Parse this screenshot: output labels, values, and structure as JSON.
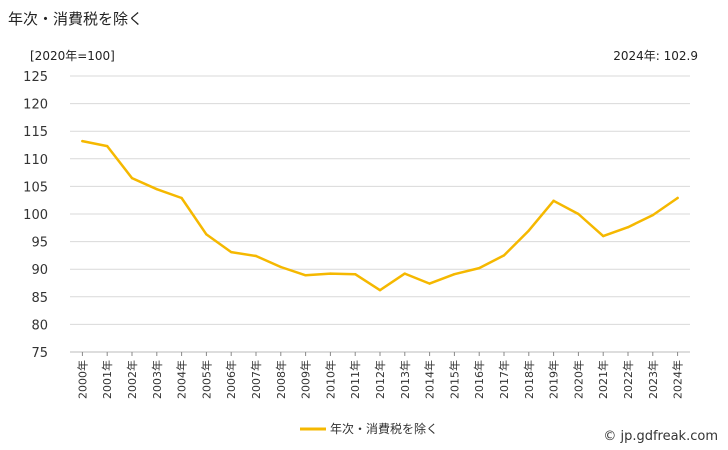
{
  "page": {
    "title": "年次・消費税を除く",
    "unit_label": "[2020年=100]",
    "latest_label": "2024年: 102.9",
    "credit": "© jp.gdfreak.com"
  },
  "chart_data": {
    "type": "line",
    "title": "年次・消費税を除く",
    "x": [
      "2000年",
      "2001年",
      "2002年",
      "2003年",
      "2004年",
      "2005年",
      "2006年",
      "2007年",
      "2008年",
      "2009年",
      "2010年",
      "2011年",
      "2012年",
      "2013年",
      "2014年",
      "2015年",
      "2016年",
      "2017年",
      "2018年",
      "2019年",
      "2020年",
      "2021年",
      "2022年",
      "2023年",
      "2024年"
    ],
    "series": [
      {
        "name": "年次・消費税を除く",
        "color": "#f5b800",
        "values": [
          113.2,
          112.3,
          106.5,
          104.5,
          102.9,
          96.3,
          93.1,
          92.4,
          90.4,
          88.9,
          89.2,
          89.1,
          86.2,
          89.2,
          87.4,
          89.1,
          90.2,
          92.5,
          97.0,
          102.4,
          100.0,
          96.0,
          97.6,
          99.8,
          102.9
        ]
      }
    ],
    "yticks": [
      75,
      80,
      85,
      90,
      95,
      100,
      105,
      110,
      115,
      120,
      125
    ],
    "ylim": [
      75,
      125
    ],
    "grid": "horizontal",
    "legend": "bottom-center"
  }
}
